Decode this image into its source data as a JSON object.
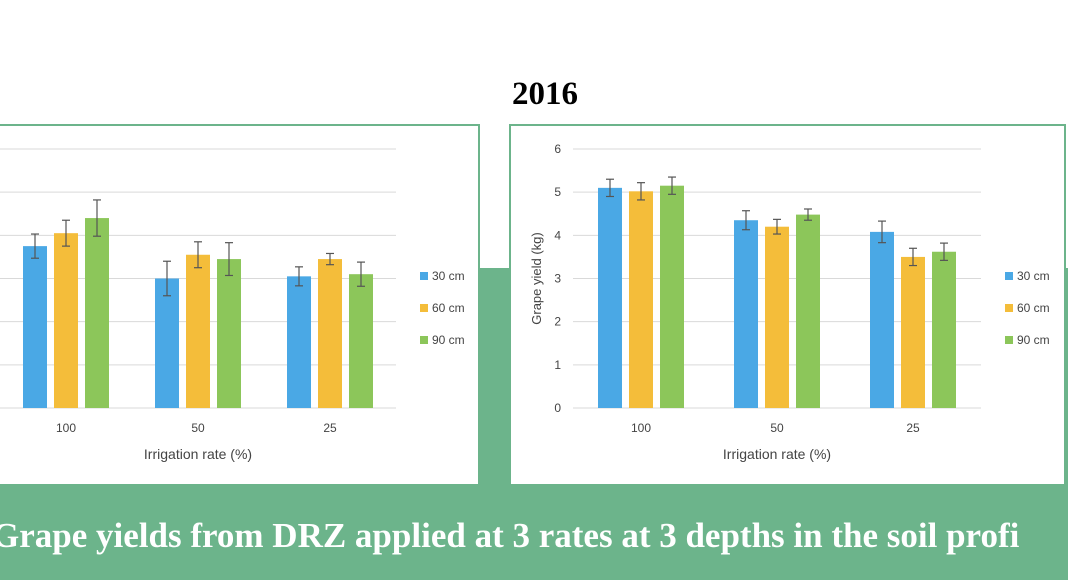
{
  "heading": "2016",
  "caption": "Grape yields from DRZ applied at 3 rates at 3 depths in the soil profi",
  "colors": {
    "30 cm": "#4aa8e5",
    "60 cm": "#f4bd3a",
    "90 cm": "#8cc65a",
    "band": "#6cb48b"
  },
  "chart_data": [
    {
      "type": "bar",
      "title": "",
      "xlabel": "Irrigation rate (%)",
      "ylabel": "",
      "ylim": [
        0,
        6
      ],
      "yticks": [
        "0",
        "1",
        "2",
        "3",
        "4",
        "5",
        "6"
      ],
      "show_y_tick_labels": false,
      "grid": true,
      "legend": "right",
      "categories": [
        "100",
        "50",
        "25"
      ],
      "series": [
        {
          "name": "30 cm",
          "values": [
            3.75,
            3.0,
            3.05
          ],
          "errors": [
            0.28,
            0.4,
            0.22
          ]
        },
        {
          "name": "60 cm",
          "values": [
            4.05,
            3.55,
            3.45
          ],
          "errors": [
            0.3,
            0.3,
            0.13
          ]
        },
        {
          "name": "90 cm",
          "values": [
            4.4,
            3.45,
            3.1
          ],
          "errors": [
            0.42,
            0.38,
            0.28
          ]
        }
      ]
    },
    {
      "type": "bar",
      "title": "",
      "xlabel": "Irrigation rate (%)",
      "ylabel": "Grape yield (kg)",
      "ylim": [
        0,
        6
      ],
      "yticks": [
        "0",
        "1",
        "2",
        "3",
        "4",
        "5",
        "6"
      ],
      "show_y_tick_labels": true,
      "grid": true,
      "legend": "right",
      "categories": [
        "100",
        "50",
        "25"
      ],
      "series": [
        {
          "name": "30 cm",
          "values": [
            5.1,
            4.35,
            4.08
          ],
          "errors": [
            0.2,
            0.22,
            0.25
          ]
        },
        {
          "name": "60 cm",
          "values": [
            5.02,
            4.2,
            3.5
          ],
          "errors": [
            0.2,
            0.17,
            0.2
          ]
        },
        {
          "name": "90 cm",
          "values": [
            5.15,
            4.48,
            3.62
          ],
          "errors": [
            0.2,
            0.13,
            0.2
          ]
        }
      ]
    }
  ]
}
